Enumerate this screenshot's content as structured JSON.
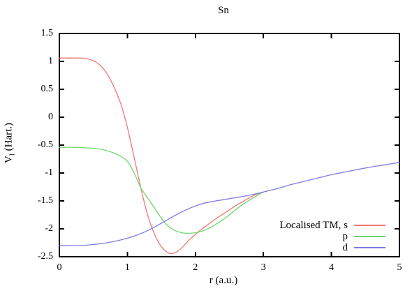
{
  "chart_data": {
    "type": "line",
    "title": "Sn",
    "xlabel": "r (a.u.)",
    "ylabel": "V_l (Hart.)",
    "ylabel_parts": {
      "main": "V",
      "sub": "l",
      "rest": " (Hart.)"
    },
    "xlim": [
      0,
      5
    ],
    "ylim": [
      -2.5,
      1.5
    ],
    "xticks": [
      0,
      1,
      2,
      3,
      4,
      5
    ],
    "xtick_labels": [
      "0",
      "1",
      "2",
      "3",
      "4",
      "5"
    ],
    "yticks": [
      1.5,
      1,
      0.5,
      0,
      -0.5,
      -1,
      -1.5,
      -2,
      -2.5
    ],
    "ytick_labels": [
      "1.5",
      "1",
      "0.5",
      "0",
      "-0.5",
      "-1",
      "-1.5",
      "-2",
      "-2.5"
    ],
    "grid": false,
    "legend_position": "inside-bottom-right",
    "border_color": "#000000",
    "background_color": "#ffffff",
    "series": [
      {
        "id": "s",
        "name": "Localised TM, s",
        "color": "#f07876",
        "x": [
          0,
          0.15,
          0.3,
          0.4,
          0.5,
          0.6,
          0.7,
          0.8,
          0.9,
          0.95,
          1.0,
          1.1,
          1.2,
          1.3,
          1.4,
          1.5,
          1.6,
          1.65,
          1.7,
          1.8,
          1.9,
          2.0,
          2.1,
          2.2,
          2.3,
          2.4,
          2.5,
          2.6,
          2.7,
          2.8,
          2.9,
          3.0
        ],
        "y": [
          1.06,
          1.06,
          1.06,
          1.05,
          1.01,
          0.93,
          0.78,
          0.55,
          0.25,
          0.05,
          -0.18,
          -0.72,
          -1.28,
          -1.76,
          -2.1,
          -2.32,
          -2.43,
          -2.44,
          -2.43,
          -2.34,
          -2.21,
          -2.1,
          -2.0,
          -1.91,
          -1.82,
          -1.74,
          -1.66,
          -1.58,
          -1.51,
          -1.44,
          -1.38,
          -1.34
        ]
      },
      {
        "id": "p",
        "name": "p",
        "color": "#6cd96c",
        "x": [
          0,
          0.2,
          0.4,
          0.6,
          0.8,
          0.9,
          1.0,
          1.1,
          1.2,
          1.3,
          1.4,
          1.5,
          1.6,
          1.7,
          1.8,
          1.9,
          2.0,
          2.1,
          2.2,
          2.3,
          2.4,
          2.5,
          2.6,
          2.7,
          2.8,
          2.9,
          3.0
        ],
        "y": [
          -0.54,
          -0.54,
          -0.55,
          -0.57,
          -0.64,
          -0.7,
          -0.79,
          -1.0,
          -1.27,
          -1.45,
          -1.63,
          -1.81,
          -1.95,
          -2.03,
          -2.07,
          -2.08,
          -2.07,
          -2.04,
          -1.99,
          -1.92,
          -1.84,
          -1.75,
          -1.65,
          -1.56,
          -1.48,
          -1.41,
          -1.34
        ]
      },
      {
        "id": "d",
        "name": "d",
        "color": "#7b7be4",
        "x": [
          0,
          0.3,
          0.5,
          0.7,
          0.9,
          1.1,
          1.3,
          1.5,
          1.7,
          1.9,
          2.1,
          2.3,
          2.5,
          2.7,
          2.9,
          3.0,
          3.2,
          3.4,
          3.6,
          3.8,
          4.0,
          4.25,
          4.5,
          4.75,
          5.0
        ],
        "y": [
          -2.3,
          -2.3,
          -2.28,
          -2.25,
          -2.2,
          -2.13,
          -2.03,
          -1.9,
          -1.76,
          -1.64,
          -1.55,
          -1.5,
          -1.46,
          -1.42,
          -1.37,
          -1.34,
          -1.28,
          -1.21,
          -1.15,
          -1.09,
          -1.03,
          -0.97,
          -0.91,
          -0.86,
          -0.81
        ]
      }
    ]
  }
}
